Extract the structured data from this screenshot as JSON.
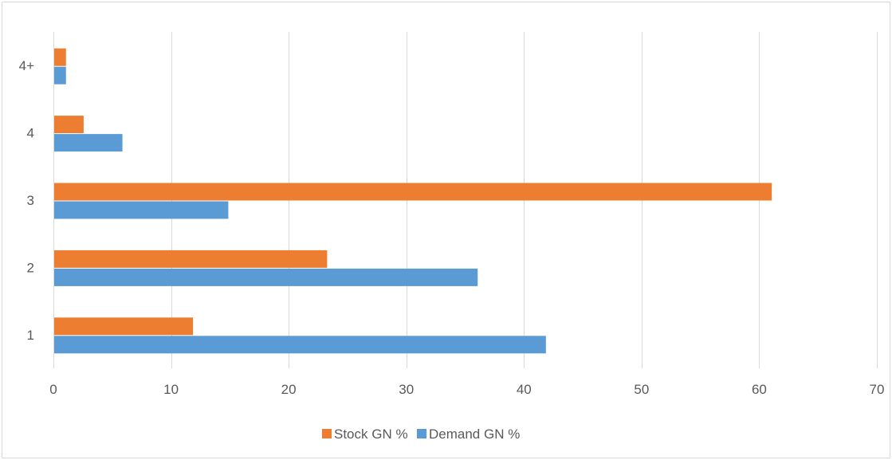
{
  "chart_data": {
    "type": "bar",
    "orientation": "horizontal",
    "categories": [
      "1",
      "2",
      "3",
      "4",
      "4+"
    ],
    "series": [
      {
        "name": "Stock GN %",
        "color": "#ed7d31",
        "values": [
          11.8,
          23.2,
          61.0,
          2.5,
          1.0
        ]
      },
      {
        "name": "Demand GN %",
        "color": "#5b9bd5",
        "values": [
          41.8,
          36.0,
          14.8,
          5.8,
          1.0
        ]
      }
    ],
    "xlim": [
      0,
      70
    ],
    "x_ticks": [
      0,
      10,
      20,
      30,
      40,
      50,
      60,
      70
    ],
    "grid": true,
    "legend_position": "bottom",
    "title": "",
    "xlabel": "",
    "ylabel": ""
  }
}
